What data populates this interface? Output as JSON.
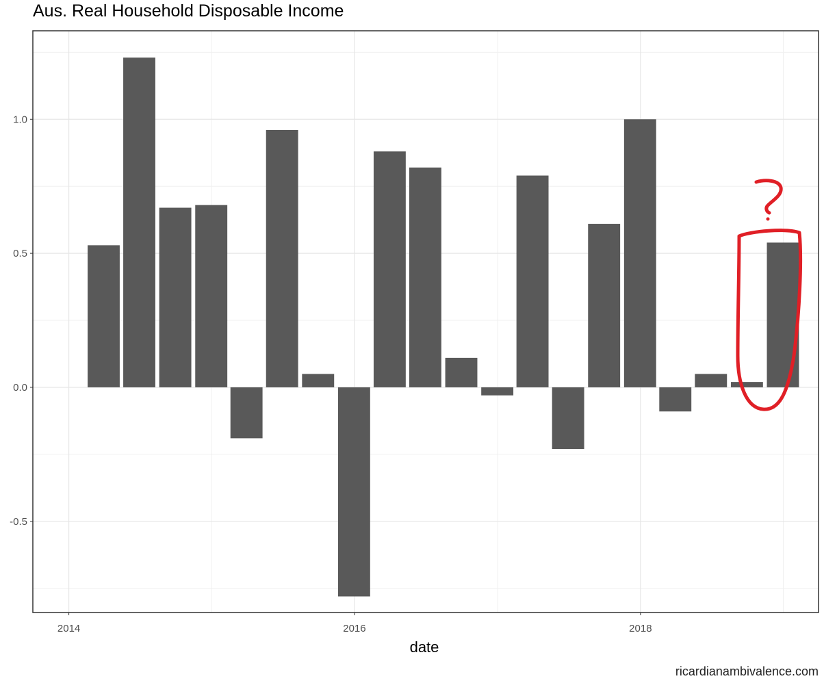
{
  "chart_data": {
    "type": "bar",
    "title": "Aus. Real Household Disposable Income",
    "xlabel": "date",
    "ylabel": "",
    "x": [
      "2014-03",
      "2014-06",
      "2014-09",
      "2014-12",
      "2015-03",
      "2015-06",
      "2015-09",
      "2015-12",
      "2016-03",
      "2016-06",
      "2016-09",
      "2016-12",
      "2017-03",
      "2017-06",
      "2017-09",
      "2017-12",
      "2018-03",
      "2018-06",
      "2018-09",
      "2018-12"
    ],
    "values": [
      0.53,
      1.23,
      0.67,
      0.68,
      -0.19,
      0.96,
      0.05,
      -0.78,
      0.88,
      0.82,
      0.11,
      -0.03,
      0.79,
      -0.23,
      0.61,
      1.0,
      -0.09,
      0.05,
      0.02,
      0.54
    ],
    "ylim": [
      -0.84,
      1.33
    ],
    "xlim": [
      "2013-10-01",
      "2019-04-01"
    ],
    "y_ticks": [
      -0.5,
      0.0,
      0.5,
      1.0
    ],
    "y_tick_labels": [
      "-0.5",
      "0.0",
      "0.5",
      "1.0"
    ],
    "x_ticks": [
      "2014-01-01",
      "2016-01-01",
      "2018-01-01"
    ],
    "x_tick_labels": [
      "2014",
      "2016",
      "2018"
    ],
    "grid": true,
    "bar_color": "#595959",
    "annotation": {
      "text": "?",
      "color": "#e01f26",
      "highlights_index": 19
    }
  },
  "credit": "ricardianambivalence.com"
}
